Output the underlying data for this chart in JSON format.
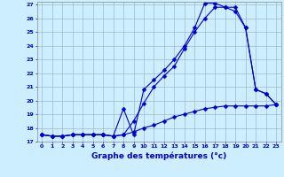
{
  "xlabel": "Graphe des températures (°c)",
  "bg_color": "#cceeff",
  "grid_color": "#99bbcc",
  "line_color": "#0000cc",
  "xlim": [
    -0.5,
    23.5
  ],
  "ylim": [
    17,
    27.2
  ],
  "yticks": [
    17,
    18,
    19,
    20,
    21,
    22,
    23,
    24,
    25,
    26,
    27
  ],
  "xticks": [
    0,
    1,
    2,
    3,
    4,
    5,
    6,
    7,
    8,
    9,
    10,
    11,
    12,
    13,
    14,
    15,
    16,
    17,
    18,
    19,
    20,
    21,
    22,
    23
  ],
  "line1_x": [
    0,
    1,
    2,
    3,
    4,
    5,
    6,
    7,
    8,
    9,
    10,
    11,
    12,
    13,
    14,
    15,
    16,
    17,
    18,
    19,
    20,
    21,
    22,
    23
  ],
  "line1_y": [
    17.5,
    17.4,
    17.4,
    17.5,
    17.5,
    17.5,
    17.5,
    17.4,
    17.5,
    17.7,
    18.0,
    18.2,
    18.5,
    18.8,
    19.0,
    19.2,
    19.4,
    19.5,
    19.6,
    19.6,
    19.6,
    19.6,
    19.6,
    19.7
  ],
  "line2_x": [
    0,
    1,
    2,
    3,
    4,
    5,
    6,
    7,
    8,
    9,
    10,
    11,
    12,
    13,
    14,
    15,
    16,
    17,
    18,
    19,
    20,
    21,
    22,
    23
  ],
  "line2_y": [
    17.5,
    17.4,
    17.4,
    17.5,
    17.5,
    17.5,
    17.5,
    17.4,
    19.4,
    17.5,
    20.8,
    21.5,
    22.2,
    23.0,
    24.0,
    25.3,
    27.1,
    27.1,
    26.8,
    26.8,
    25.3,
    20.8,
    20.5,
    19.7
  ],
  "line3_x": [
    0,
    1,
    2,
    3,
    4,
    5,
    6,
    7,
    8,
    9,
    10,
    11,
    12,
    13,
    14,
    15,
    16,
    17,
    18,
    19,
    20,
    21,
    22,
    23
  ],
  "line3_y": [
    17.5,
    17.4,
    17.4,
    17.5,
    17.5,
    17.5,
    17.5,
    17.4,
    17.5,
    18.5,
    19.8,
    21.0,
    21.8,
    22.5,
    23.8,
    25.0,
    26.0,
    26.8,
    26.8,
    26.5,
    25.3,
    20.8,
    20.5,
    19.7
  ]
}
